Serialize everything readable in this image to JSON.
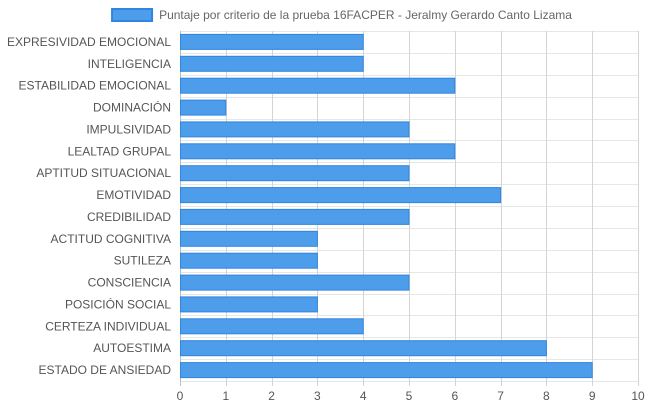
{
  "chart_data": {
    "type": "bar",
    "orientation": "horizontal",
    "title": "",
    "xlabel": "",
    "ylabel": "",
    "legend": {
      "position": "top",
      "entries": [
        "Puntaje por criterio de la prueba 16FACPER - Jeralmy Gerardo Canto Lizama"
      ]
    },
    "categories": [
      "EXPRESIVIDAD EMOCIONAL",
      "INTELIGENCIA",
      "ESTABILIDAD EMOCIONAL",
      "DOMINACIÓN",
      "IMPULSIVIDAD",
      "LEALTAD GRUPAL",
      "APTITUD SITUACIONAL",
      "EMOTIVIDAD",
      "CREDIBILIDAD",
      "ACTITUD COGNITIVA",
      "SUTILEZA",
      "CONSCIENCIA",
      "POSICIÓN SOCIAL",
      "CERTEZA INDIVIDUAL",
      "AUTOESTIMA",
      "ESTADO DE ANSIEDAD"
    ],
    "series": [
      {
        "name": "Puntaje por criterio de la prueba 16FACPER - Jeralmy Gerardo Canto Lizama",
        "values": [
          4,
          4,
          6,
          1,
          5,
          6,
          5,
          7,
          5,
          3,
          3,
          5,
          3,
          4,
          8,
          9
        ],
        "color": "#4d9deb",
        "border_color": "#2f86e0"
      }
    ],
    "xlim": [
      0,
      10
    ],
    "x_ticks": [
      "0",
      "1",
      "2",
      "3",
      "4",
      "5",
      "6",
      "7",
      "8",
      "9",
      "10"
    ],
    "grid": true
  }
}
